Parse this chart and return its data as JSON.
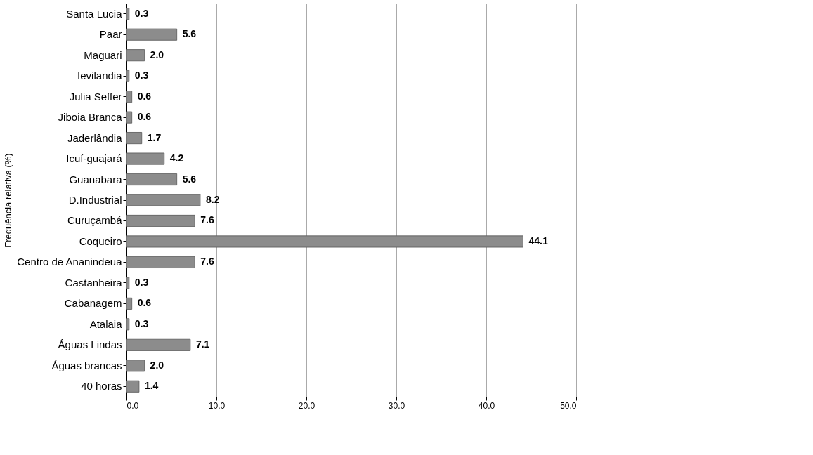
{
  "chart_data": {
    "type": "bar",
    "orientation": "horizontal",
    "ylabel": "Frequência relativa (%)",
    "categories": [
      "Santa Lucia",
      "Paar",
      "Maguari",
      "Ievilandia",
      "Julia Seffer",
      "Jiboia Branca",
      "Jaderlândia",
      "Icuí-guajará",
      "Guanabara",
      "D.Industrial",
      "Curuçambá",
      "Coqueiro",
      "Centro de Ananindeua",
      "Castanheira",
      "Cabanagem",
      "Atalaia",
      "Águas Lindas",
      "Águas brancas",
      "40 horas"
    ],
    "values": [
      0.3,
      5.6,
      2.0,
      0.3,
      0.6,
      0.6,
      1.7,
      4.2,
      5.6,
      8.2,
      7.6,
      44.1,
      7.6,
      0.3,
      0.6,
      0.3,
      7.1,
      2.0,
      1.4
    ],
    "value_labels": [
      "0.3",
      "5.6",
      "2.0",
      "0.3",
      "0.6",
      "0.6",
      "1.7",
      "4.2",
      "5.6",
      "8.2",
      "7.6",
      "44.1",
      "7.6",
      "0.3",
      "0.6",
      "0.3",
      "7.1",
      "2.0",
      "1.4"
    ],
    "color": "#8c8c8c",
    "xlim": [
      0,
      50
    ],
    "xticks": [
      {
        "value": 0,
        "label": "0.0"
      },
      {
        "value": 10,
        "label": "10.0"
      },
      {
        "value": 20,
        "label": "20.0"
      },
      {
        "value": 30,
        "label": "30.0"
      },
      {
        "value": 40,
        "label": "40.0"
      },
      {
        "value": 50,
        "label": "50.0"
      }
    ],
    "grid": "x"
  }
}
